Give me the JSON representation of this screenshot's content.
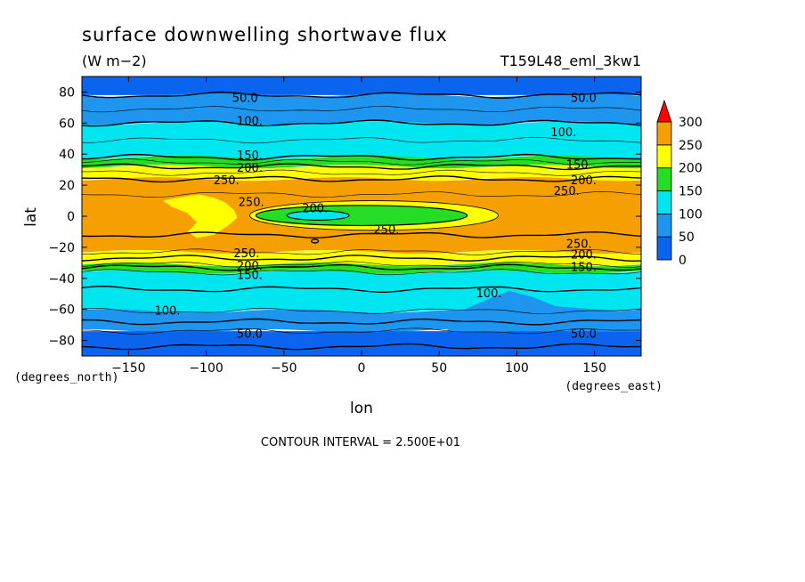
{
  "chart_data": {
    "type": "heatmap",
    "title": "surface downwelling shortwave flux",
    "units": "(W m−2)",
    "run_label": "T159L48_eml_3kw1",
    "xlabel": "lon",
    "ylabel": "lat",
    "x_units": "(degrees_east)",
    "y_units": "(degrees_north)",
    "xlim": [
      -180,
      180
    ],
    "ylim": [
      -90,
      90
    ],
    "x_ticks": [
      -150,
      -100,
      -50,
      0,
      50,
      100,
      150
    ],
    "x_tick_labels": [
      "−150",
      "−100",
      "−50",
      "0",
      "50",
      "100",
      "150"
    ],
    "y_ticks": [
      80,
      60,
      40,
      20,
      0,
      -20,
      -40,
      -60,
      -80
    ],
    "y_tick_labels": [
      "80",
      "60",
      "40",
      "20",
      "0",
      "−20",
      "−40",
      "−60",
      "−80"
    ],
    "contour_interval_text": "CONTOUR INTERVAL = 2.500E+01",
    "colorbar": {
      "levels": [
        0,
        50,
        100,
        150,
        200,
        250,
        300
      ],
      "level_labels": [
        "0",
        "50",
        "100",
        "150",
        "200",
        "250",
        "300"
      ],
      "colors": [
        "#0a64ee",
        "#1e96f0",
        "#00e6f0",
        "#24dd24",
        "#ffff00",
        "#f5a000",
        "#ff0000"
      ],
      "extend": "max"
    },
    "bands": [
      {
        "lat": [
          78,
          90
        ],
        "range": "0-50",
        "color": "#0a64ee"
      },
      {
        "lat": [
          60,
          78
        ],
        "range": "50-100",
        "color": "#1e96f0"
      },
      {
        "lat": [
          38,
          60
        ],
        "range": "100-150",
        "color": "#00e6f0"
      },
      {
        "lat": [
          32,
          38
        ],
        "range": "150-200",
        "color": "#24dd24"
      },
      {
        "lat": [
          24,
          32
        ],
        "range": "200-250",
        "color": "#ffff00"
      },
      {
        "lat": [
          -23,
          24
        ],
        "range": "250-300",
        "color": "#f5a000"
      },
      {
        "lat": [
          -31,
          -23
        ],
        "range": "200-250",
        "color": "#ffff00"
      },
      {
        "lat": [
          -36,
          -31
        ],
        "range": "150-200",
        "color": "#24dd24"
      },
      {
        "lat": [
          -61,
          -36
        ],
        "range": "100-150",
        "color": "#00e6f0"
      },
      {
        "lat": [
          -74,
          -61
        ],
        "range": "50-100",
        "color": "#1e96f0"
      },
      {
        "lat": [
          -90,
          -74
        ],
        "range": "0-50",
        "color": "#0a64ee"
      }
    ],
    "features": [
      {
        "name": "warm pool low-flux core",
        "range": "100-150",
        "center": [
          -30,
          0
        ]
      },
      {
        "name": "warm pool ring",
        "range": "150-200",
        "center": [
          0,
          1
        ]
      },
      {
        "name": "warm pool outer ring",
        "range": "200-250",
        "center": [
          5,
          1
        ]
      },
      {
        "name": "africa-america yellow patch",
        "range": "200-250",
        "center": [
          -95,
          2
        ]
      },
      {
        "name": "south pacific low-flux tongue",
        "range": "50-100",
        "center": [
          100,
          -58
        ]
      }
    ],
    "contour_labels": [
      {
        "text": "50.0",
        "lon": -75,
        "lat": 76
      },
      {
        "text": "50.0",
        "lon": 143,
        "lat": 76
      },
      {
        "text": "100.",
        "lon": -72,
        "lat": 61
      },
      {
        "text": "100.",
        "lon": 130,
        "lat": 54
      },
      {
        "text": "150.",
        "lon": -72,
        "lat": 39
      },
      {
        "text": "150.",
        "lon": 140,
        "lat": 33
      },
      {
        "text": "200.",
        "lon": -72,
        "lat": 31
      },
      {
        "text": "200.",
        "lon": 143,
        "lat": 23
      },
      {
        "text": "250.",
        "lon": -87,
        "lat": 23
      },
      {
        "text": "250.",
        "lon": 132,
        "lat": 16
      },
      {
        "text": "250.",
        "lon": -71,
        "lat": 9
      },
      {
        "text": "200.",
        "lon": -30,
        "lat": 5
      },
      {
        "text": "250.",
        "lon": 16,
        "lat": -9
      },
      {
        "text": "250.",
        "lon": 140,
        "lat": -18
      },
      {
        "text": "200.",
        "lon": 143,
        "lat": -25
      },
      {
        "text": "150.",
        "lon": 143,
        "lat": -33
      },
      {
        "text": "250.",
        "lon": -74,
        "lat": -24
      },
      {
        "text": "200.",
        "lon": -72,
        "lat": -32
      },
      {
        "text": "150.",
        "lon": -72,
        "lat": -38
      },
      {
        "text": "100.",
        "lon": -125,
        "lat": -61
      },
      {
        "text": "100.",
        "lon": 82,
        "lat": -50
      },
      {
        "text": "50.0",
        "lon": -72,
        "lat": -76
      },
      {
        "text": "50.0",
        "lon": 143,
        "lat": -76
      }
    ]
  }
}
